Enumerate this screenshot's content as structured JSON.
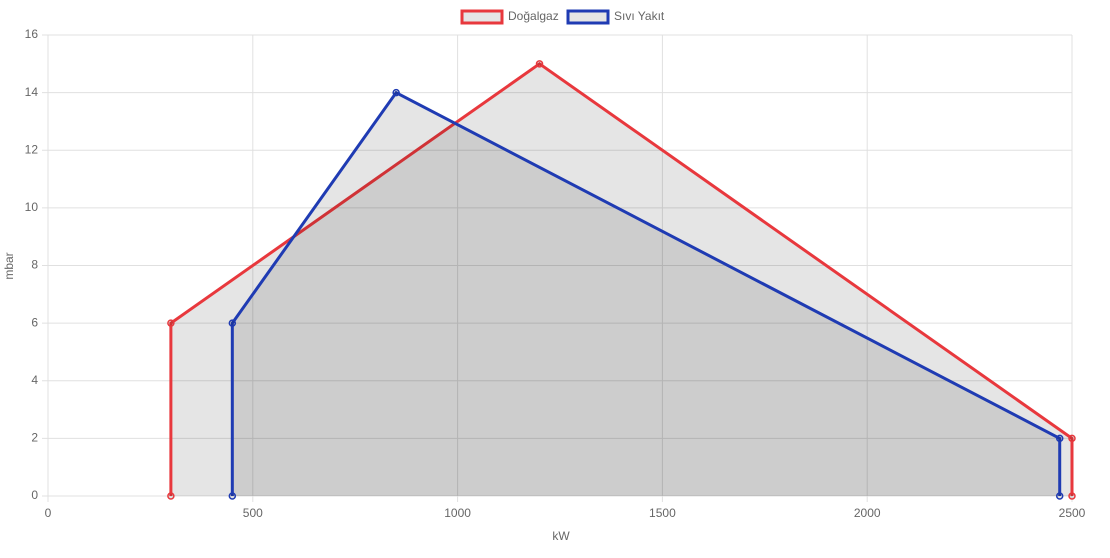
{
  "chart_data": {
    "type": "area",
    "x_label": "kW",
    "y_label": "mbar",
    "series": [
      {
        "name": "Doğalgaz",
        "color": "#e8383d",
        "x": [
          300,
          300,
          1200,
          2500,
          2500
        ],
        "values": [
          0,
          6,
          15,
          2,
          0
        ]
      },
      {
        "name": "Sıvı Yakıt",
        "color": "#1f3bb3",
        "x": [
          450,
          450,
          850,
          2470,
          2470
        ],
        "values": [
          0,
          6,
          14,
          2,
          0
        ]
      }
    ],
    "xlim": [
      0,
      2500
    ],
    "xticks": [
      0,
      500,
      1000,
      1500,
      2000,
      2500
    ],
    "ylim": [
      0,
      16
    ],
    "yticks": [
      0,
      2,
      4,
      6,
      8,
      10,
      12,
      14,
      16
    ],
    "grid": true,
    "legend": "top"
  }
}
